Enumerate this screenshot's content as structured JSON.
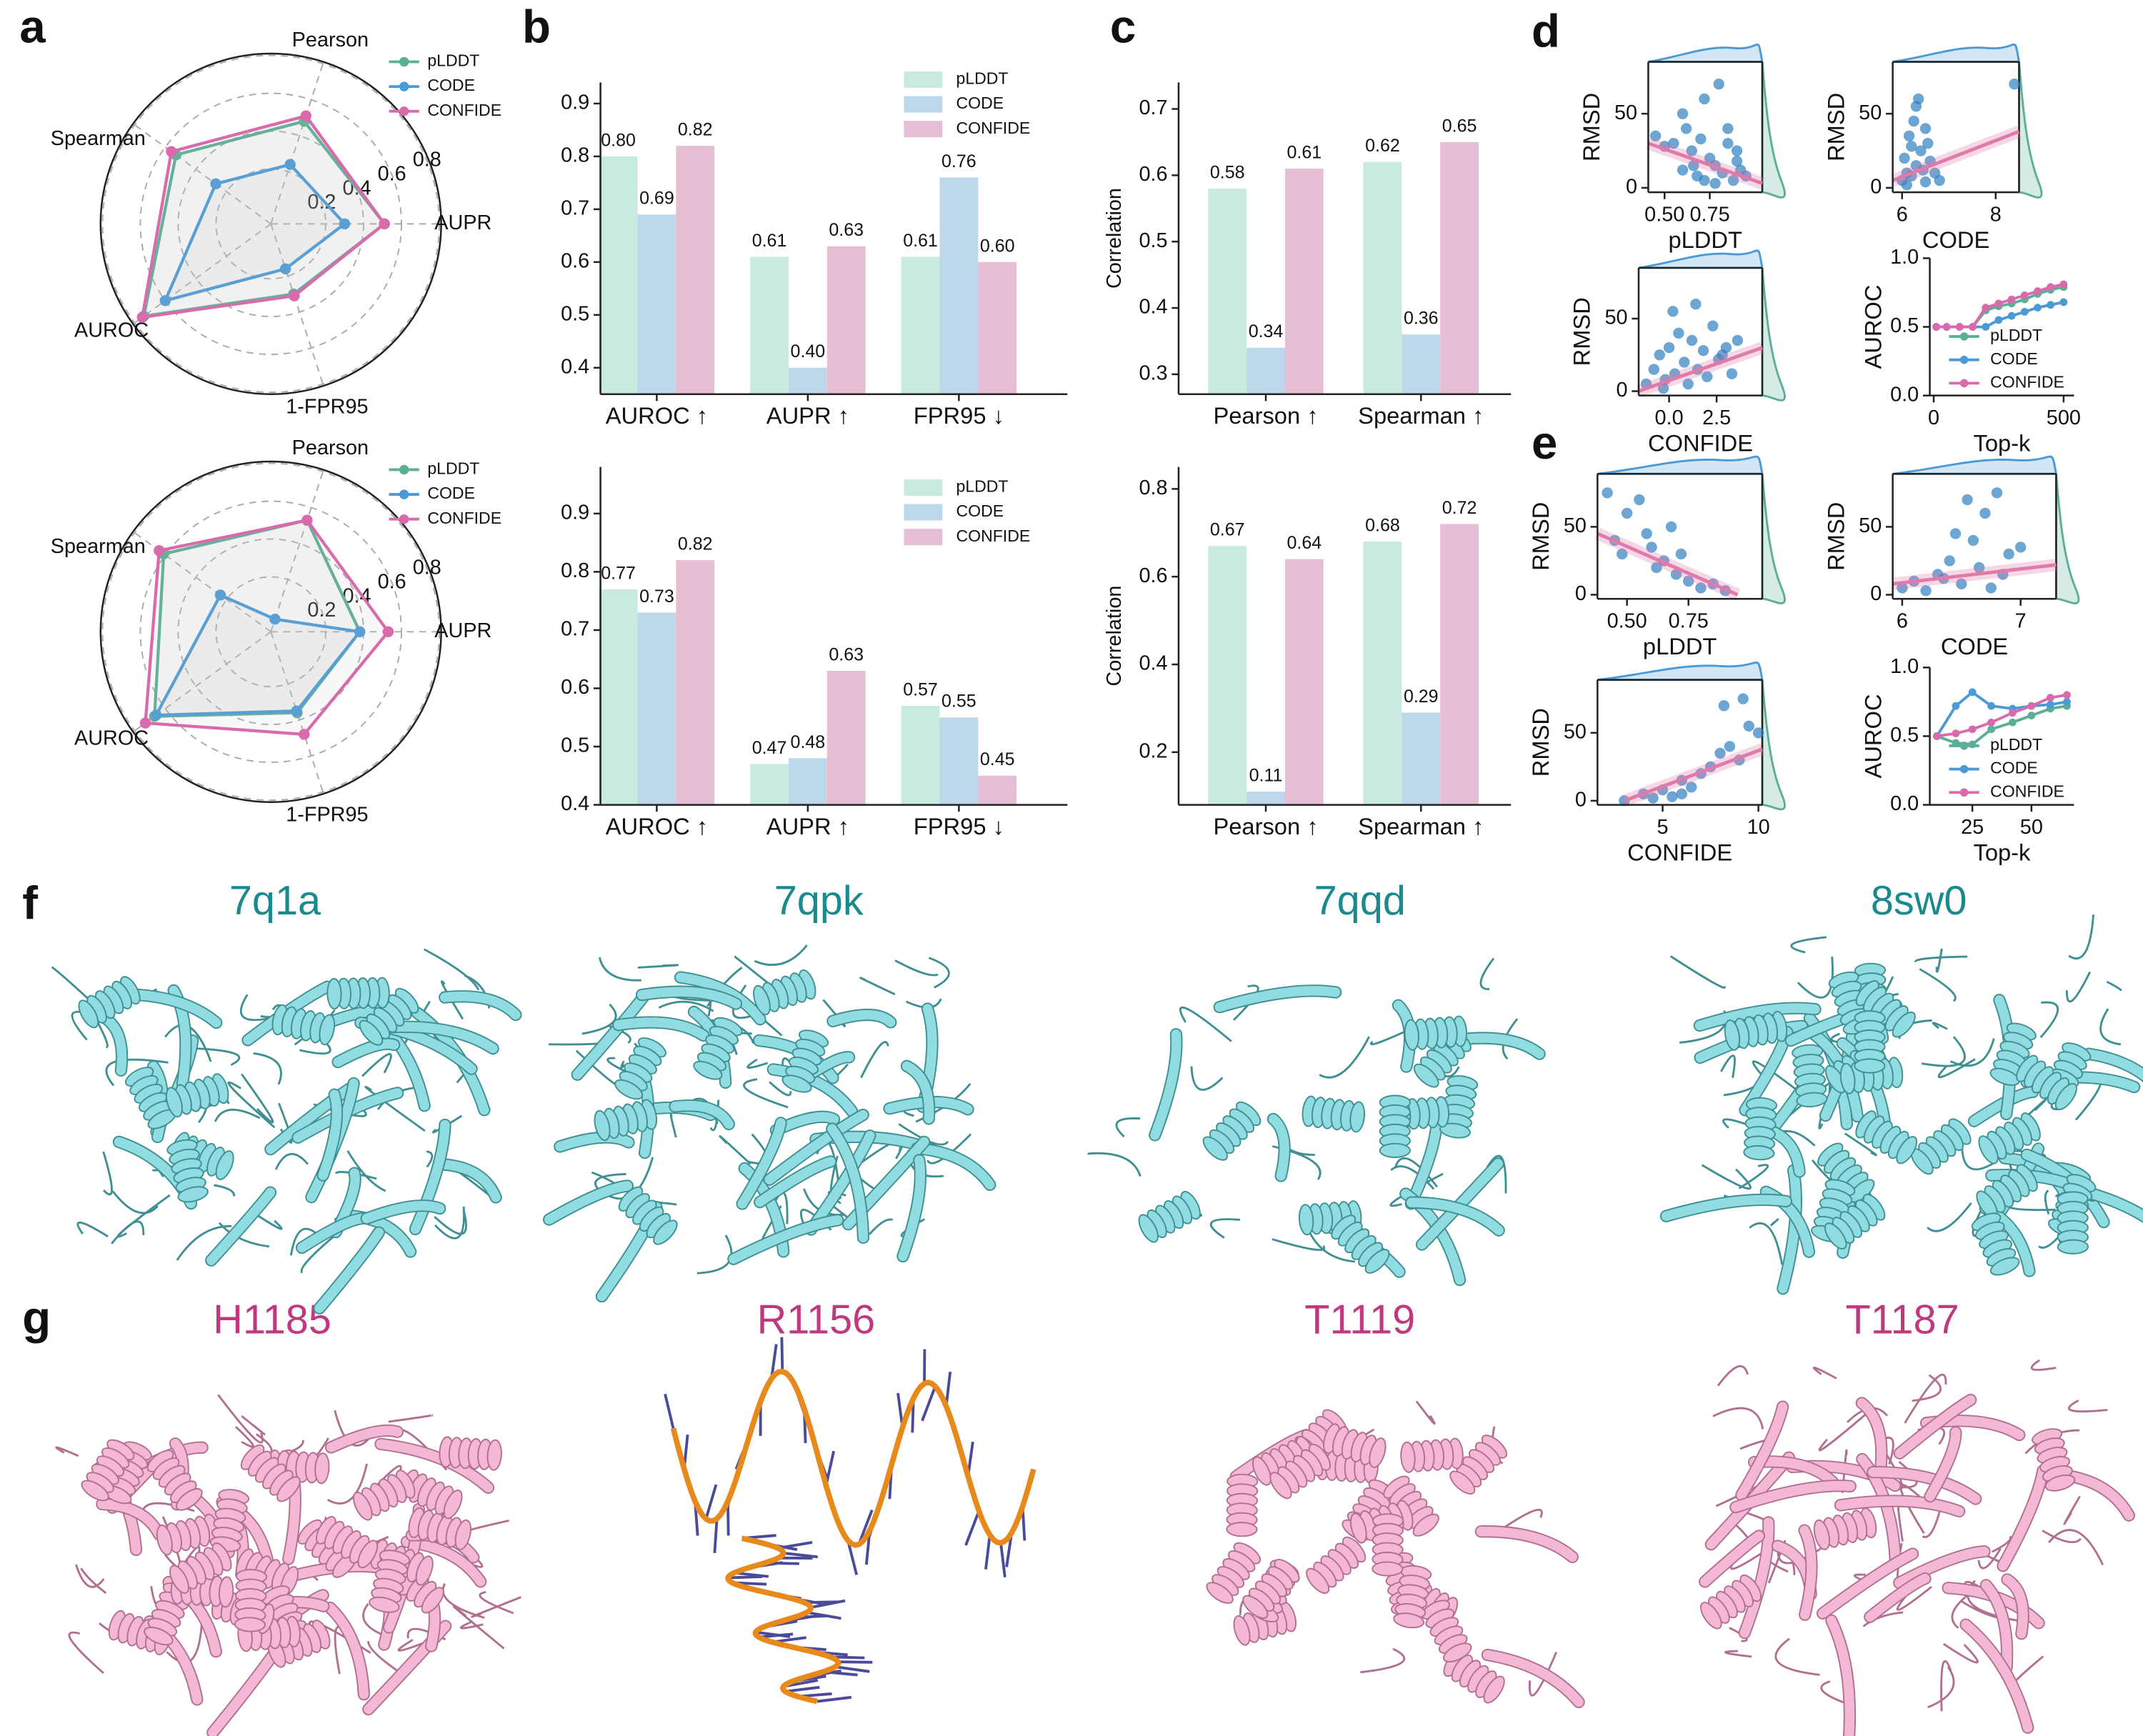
{
  "panel_labels": [
    "a",
    "b",
    "c",
    "d",
    "e",
    "f",
    "g"
  ],
  "structures_f": [
    "7q1a",
    "7qpk",
    "7qqd",
    "8sw0"
  ],
  "structures_g": [
    "H1185",
    "R1156",
    "T1119",
    "T1187"
  ],
  "chart_data": [
    {
      "type": "radar",
      "axes": [
        "AUPR",
        "Pearson",
        "Spearman",
        "AUROC",
        "1-FPR95"
      ],
      "rlim": [
        -0.09,
        0.81
      ],
      "rticks": [
        0.2,
        0.4,
        0.6,
        0.8
      ],
      "legend": "upper right",
      "series": [
        {
          "name": "pLDDT",
          "color": "#5aaf96",
          "values": [
            0.51,
            0.48,
            0.53,
            0.74,
            0.3
          ]
        },
        {
          "name": "CODE",
          "color": "#4a9ad6",
          "values": [
            0.3,
            0.24,
            0.27,
            0.6,
            0.16
          ]
        },
        {
          "name": "CONFIDE",
          "color": "#d96aab",
          "values": [
            0.51,
            0.51,
            0.56,
            0.75,
            0.31
          ]
        }
      ]
    },
    {
      "type": "radar",
      "axes": [
        "AUPR",
        "Pearson",
        "Spearman",
        "AUROC",
        "1-FPR95"
      ],
      "rlim": [
        -0.09,
        0.81
      ],
      "rticks": [
        0.2,
        0.4,
        0.6,
        0.8
      ],
      "legend": "upper right",
      "series": [
        {
          "name": "pLDDT",
          "color": "#5aaf96",
          "values": [
            0.38,
            0.53,
            0.61,
            0.67,
            0.36
          ]
        },
        {
          "name": "CODE",
          "color": "#4a9ad6",
          "values": [
            0.38,
            -0.02,
            0.24,
            0.66,
            0.35
          ]
        },
        {
          "name": "CONFIDE",
          "color": "#d96aab",
          "values": [
            0.53,
            0.53,
            0.64,
            0.73,
            0.48
          ]
        }
      ]
    },
    {
      "type": "bar",
      "categories": [
        "AUROC ↑",
        "AUPR ↑",
        "FPR95 ↓"
      ],
      "ylim": [
        0.35,
        0.94
      ],
      "yticks": [
        0.4,
        0.5,
        0.6,
        0.7,
        0.8,
        0.9
      ],
      "legend": "upper right",
      "series": [
        {
          "name": "pLDDT",
          "color": "#c8eadf",
          "values": [
            0.8,
            0.61,
            0.61
          ],
          "value_labels": [
            "0.80",
            "0.61",
            "0.61"
          ]
        },
        {
          "name": "CODE",
          "color": "#bdd7eb",
          "values": [
            0.69,
            0.4,
            0.76
          ],
          "value_labels": [
            "0.69",
            "0.40",
            "0.76"
          ]
        },
        {
          "name": "CONFIDE",
          "color": "#e7bfd4",
          "values": [
            0.82,
            0.63,
            0.6
          ],
          "value_labels": [
            "0.82",
            "0.63",
            "0.60"
          ]
        }
      ]
    },
    {
      "type": "bar",
      "ylabel": "Correlation",
      "categories": [
        "Pearson ↑",
        "Spearman ↑"
      ],
      "ylim": [
        0.27,
        0.74
      ],
      "yticks": [
        0.3,
        0.4,
        0.5,
        0.6,
        0.7
      ],
      "series": [
        {
          "color": "#c8eadf",
          "values": [
            0.58,
            0.62
          ],
          "value_labels": [
            "0.58",
            "0.62"
          ]
        },
        {
          "color": "#bdd7eb",
          "values": [
            0.34,
            0.36
          ],
          "value_labels": [
            "0.34",
            "0.36"
          ]
        },
        {
          "color": "#e7bfd4",
          "values": [
            0.61,
            0.65
          ],
          "value_labels": [
            "0.61",
            "0.65"
          ]
        }
      ]
    },
    {
      "type": "bar",
      "categories": [
        "AUROC ↑",
        "AUPR ↑",
        "FPR95 ↓"
      ],
      "ylim": [
        0.4,
        0.98
      ],
      "yticks": [
        0.4,
        0.5,
        0.6,
        0.7,
        0.8,
        0.9
      ],
      "legend": "upper right",
      "series": [
        {
          "name": "pLDDT",
          "color": "#c8eadf",
          "values": [
            0.77,
            0.47,
            0.57
          ],
          "value_labels": [
            "0.77",
            "0.47",
            "0.57"
          ]
        },
        {
          "name": "CODE",
          "color": "#bdd7eb",
          "values": [
            0.73,
            0.48,
            0.55
          ],
          "value_labels": [
            "0.73",
            "0.48",
            "0.55"
          ]
        },
        {
          "name": "CONFIDE",
          "color": "#e7bfd4",
          "values": [
            0.82,
            0.63,
            0.45
          ],
          "value_labels": [
            "0.82",
            "0.63",
            "0.45"
          ]
        }
      ]
    },
    {
      "type": "bar",
      "ylabel": "Correlation",
      "categories": [
        "Pearson ↑",
        "Spearman ↑"
      ],
      "ylim": [
        0.08,
        0.85
      ],
      "yticks": [
        0.2,
        0.4,
        0.6,
        0.8
      ],
      "series": [
        {
          "color": "#c8eadf",
          "values": [
            0.67,
            0.68
          ],
          "value_labels": [
            "0.67",
            "0.68"
          ]
        },
        {
          "color": "#bdd7eb",
          "values": [
            0.11,
            0.29
          ],
          "value_labels": [
            "0.11",
            "0.29"
          ]
        },
        {
          "color": "#e7bfd4",
          "values": [
            0.64,
            0.72
          ],
          "value_labels": [
            "0.64",
            "0.72"
          ]
        }
      ]
    },
    {
      "type": "scatter",
      "xlabel": "pLDDT",
      "ylabel": "RMSD",
      "color": "#2f7fc1",
      "xlim": [
        0.41,
        1.04
      ],
      "ylim": [
        -3,
        85
      ],
      "xticks": [
        {
          "value": 0.5,
          "label": "0.50"
        },
        {
          "value": 0.75,
          "label": "0.75"
        }
      ],
      "yticks": [
        0,
        50
      ],
      "x": [
        0.45,
        0.5,
        0.55,
        0.6,
        0.62,
        0.65,
        0.68,
        0.7,
        0.72,
        0.75,
        0.78,
        0.8,
        0.82,
        0.85,
        0.88,
        0.9,
        0.92,
        0.95,
        0.72,
        0.6,
        0.85,
        0.9,
        0.78,
        0.66
      ],
      "y": [
        35,
        28,
        30,
        12,
        40,
        25,
        8,
        33,
        5,
        20,
        15,
        70,
        10,
        30,
        5,
        25,
        12,
        8,
        60,
        50,
        40,
        18,
        3,
        15
      ],
      "fit": {
        "x": [
          0.41,
          1.04
        ],
        "y": [
          30,
          3
        ],
        "color": "#e07aa9"
      }
    },
    {
      "type": "scatter",
      "xlabel": "CODE",
      "ylabel": "RMSD",
      "color": "#2f7fc1",
      "xlim": [
        5.8,
        8.5
      ],
      "ylim": [
        -3,
        85
      ],
      "xticks": [
        6,
        8
      ],
      "yticks": [
        0,
        50
      ],
      "x": [
        6.0,
        6.05,
        6.1,
        6.15,
        6.2,
        6.25,
        6.3,
        6.35,
        6.4,
        6.45,
        6.5,
        6.55,
        6.6,
        6.7,
        6.8,
        6.3,
        6.2,
        6.1,
        8.4,
        6.5
      ],
      "y": [
        5,
        20,
        10,
        35,
        8,
        45,
        15,
        60,
        25,
        12,
        40,
        30,
        18,
        10,
        5,
        55,
        28,
        2,
        70,
        4
      ],
      "fit": {
        "x": [
          5.8,
          8.5
        ],
        "y": [
          5,
          38
        ],
        "color": "#e07aa9"
      }
    },
    {
      "type": "scatter",
      "xlabel": "CONFIDE",
      "ylabel": "RMSD",
      "color": "#2f7fc1",
      "xlim": [
        -1.6,
        4.9
      ],
      "ylim": [
        -3,
        85
      ],
      "xticks": [
        {
          "value": 0,
          "label": "0.0"
        },
        2.5
      ],
      "yticks": [
        0,
        50
      ],
      "x": [
        -1.2,
        -0.8,
        -0.5,
        -0.2,
        0,
        0.3,
        0.5,
        0.8,
        1,
        1.2,
        1.5,
        1.8,
        2,
        2.3,
        2.6,
        3,
        3.3,
        3.6,
        0.2,
        1.4,
        2.8,
        -0.3
      ],
      "y": [
        5,
        15,
        25,
        8,
        30,
        12,
        40,
        20,
        5,
        35,
        15,
        28,
        10,
        45,
        22,
        30,
        12,
        35,
        55,
        60,
        25,
        2
      ],
      "fit": {
        "x": [
          -1.6,
          4.9
        ],
        "y": [
          0,
          30
        ],
        "color": "#e07aa9"
      }
    },
    {
      "type": "line",
      "xlabel": "Top-k",
      "ylabel": "AUROC",
      "xlim": [
        -15,
        540
      ],
      "ylim": [
        0,
        1
      ],
      "xticks": [
        0,
        500
      ],
      "yticks": [
        {
          "value": 0,
          "label": "0.0"
        },
        0.5,
        {
          "value": 1,
          "label": "1.0"
        }
      ],
      "legend": "lower right",
      "x": [
        10,
        50,
        100,
        150,
        200,
        250,
        300,
        350,
        400,
        450,
        500
      ],
      "series": [
        {
          "name": "pLDDT",
          "color": "#5aaf96",
          "values": [
            0.5,
            0.5,
            0.5,
            0.5,
            0.62,
            0.65,
            0.67,
            0.7,
            0.74,
            0.77,
            0.79
          ]
        },
        {
          "name": "CODE",
          "color": "#4a9ad6",
          "values": [
            0.5,
            0.5,
            0.5,
            0.5,
            0.5,
            0.55,
            0.58,
            0.61,
            0.64,
            0.66,
            0.68
          ]
        },
        {
          "name": "CONFIDE",
          "color": "#d96aab",
          "values": [
            0.5,
            0.5,
            0.5,
            0.5,
            0.64,
            0.67,
            0.7,
            0.73,
            0.76,
            0.79,
            0.81
          ]
        }
      ]
    },
    {
      "type": "scatter",
      "xlabel": "pLDDT",
      "ylabel": "RMSD",
      "color": "#2f7fc1",
      "xlim": [
        0.38,
        1.05
      ],
      "ylim": [
        -3,
        89
      ],
      "xticks": [
        {
          "value": 0.5,
          "label": "0.50"
        },
        {
          "value": 0.75,
          "label": "0.75"
        }
      ],
      "yticks": [
        0,
        50
      ],
      "x": [
        0.42,
        0.45,
        0.48,
        0.5,
        0.55,
        0.6,
        0.62,
        0.65,
        0.7,
        0.72,
        0.75,
        0.8,
        0.85,
        0.9,
        0.58,
        0.68
      ],
      "y": [
        75,
        40,
        30,
        60,
        70,
        35,
        20,
        25,
        15,
        30,
        10,
        5,
        8,
        3,
        45,
        50
      ],
      "fit": {
        "x": [
          0.38,
          0.95
        ],
        "y": [
          45,
          0
        ],
        "color": "#e07aa9"
      }
    },
    {
      "type": "scatter",
      "xlabel": "CODE",
      "ylabel": "RMSD",
      "color": "#2f7fc1",
      "xlim": [
        5.92,
        7.3
      ],
      "ylim": [
        -3,
        89
      ],
      "xticks": [
        6,
        7
      ],
      "yticks": [
        0,
        50
      ],
      "x": [
        6.0,
        6.1,
        6.2,
        6.3,
        6.4,
        6.5,
        6.6,
        6.7,
        6.8,
        6.9,
        7.0,
        6.55,
        6.35,
        6.65,
        6.75,
        6.45,
        6.85
      ],
      "y": [
        5,
        10,
        3,
        15,
        25,
        8,
        40,
        60,
        75,
        30,
        35,
        70,
        12,
        20,
        5,
        45,
        15
      ],
      "fit": {
        "x": [
          5.92,
          7.3
        ],
        "y": [
          8,
          22
        ],
        "color": "#e07aa9"
      }
    },
    {
      "type": "scatter",
      "xlabel": "CONFIDE",
      "ylabel": "RMSD",
      "color": "#2f7fc1",
      "xlim": [
        1.6,
        10.2
      ],
      "ylim": [
        -3,
        89
      ],
      "xticks": [
        5,
        10
      ],
      "yticks": [
        0,
        50
      ],
      "x": [
        3,
        4,
        4.5,
        5,
        5.5,
        6,
        6.5,
        7,
        7.5,
        8,
        8.5,
        9,
        9.5,
        10,
        6,
        8.2,
        9.2
      ],
      "y": [
        0,
        5,
        2,
        8,
        3,
        15,
        10,
        20,
        25,
        35,
        40,
        30,
        55,
        50,
        5,
        70,
        75
      ],
      "fit": {
        "x": [
          3,
          10.2
        ],
        "y": [
          0,
          38
        ],
        "color": "#e07aa9"
      }
    },
    {
      "type": "line",
      "xlabel": "Top-k",
      "ylabel": "AUROC",
      "xlim": [
        7,
        68
      ],
      "ylim": [
        0,
        1
      ],
      "xticks": [
        25,
        50
      ],
      "yticks": [
        {
          "value": 0,
          "label": "0.0"
        },
        0.5,
        {
          "value": 1,
          "label": "1.0"
        }
      ],
      "legend": "lower right",
      "x": [
        10,
        18,
        25,
        33,
        42,
        50,
        58,
        65
      ],
      "series": [
        {
          "name": "pLDDT",
          "color": "#5aaf96",
          "values": [
            0.5,
            0.45,
            0.44,
            0.55,
            0.6,
            0.65,
            0.7,
            0.72
          ]
        },
        {
          "name": "CODE",
          "color": "#4a9ad6",
          "values": [
            0.5,
            0.72,
            0.82,
            0.72,
            0.7,
            0.72,
            0.73,
            0.75
          ]
        },
        {
          "name": "CONFIDE",
          "color": "#d96aab",
          "values": [
            0.5,
            0.52,
            0.55,
            0.6,
            0.67,
            0.72,
            0.78,
            0.8
          ]
        }
      ]
    }
  ]
}
